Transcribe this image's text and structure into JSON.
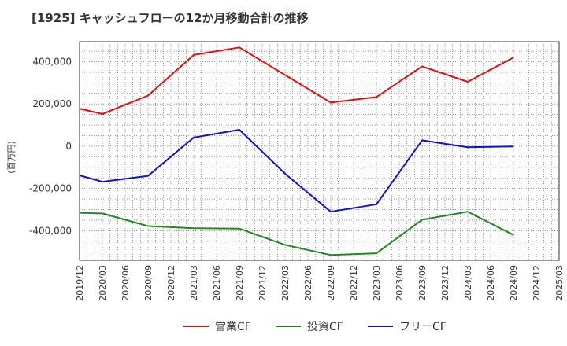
{
  "title": "[1925]  キャッシュフローの12か月移動合計の推移",
  "chart_data": {
    "type": "line",
    "title": "[1925]  キャッシュフローの12か月移動合計の推移",
    "ylabel": "(百万円)",
    "xlabel": "",
    "ylim": [
      -540000,
      495000
    ],
    "yticks": [
      400000,
      200000,
      0,
      -200000,
      -400000
    ],
    "ytick_labels": [
      "400,000",
      "200,000",
      "0",
      "-200,000",
      "-400,000"
    ],
    "x_categories": [
      "2019/12",
      "2020/03",
      "2020/06",
      "2020/09",
      "2020/12",
      "2021/03",
      "2021/06",
      "2021/09",
      "2021/12",
      "2022/03",
      "2022/06",
      "2022/09",
      "2022/12",
      "2023/03",
      "2023/06",
      "2023/09",
      "2023/12",
      "2024/03",
      "2024/06",
      "2024/09",
      "2024/12",
      "2025/03"
    ],
    "grid": true,
    "legend_position": "bottom",
    "series": [
      {
        "name": "営業CF",
        "color": "#dd1111",
        "points": [
          {
            "x": "2019/12",
            "y": 178000
          },
          {
            "x": "2020/03",
            "y": 153000
          },
          {
            "x": "2020/09",
            "y": 240000
          },
          {
            "x": "2021/03",
            "y": 432000
          },
          {
            "x": "2021/09",
            "y": 468000
          },
          {
            "x": "2022/09",
            "y": 207000
          },
          {
            "x": "2023/03",
            "y": 233000
          },
          {
            "x": "2023/09",
            "y": 378000
          },
          {
            "x": "2024/03",
            "y": 305000
          },
          {
            "x": "2024/09",
            "y": 420000
          }
        ]
      },
      {
        "name": "投資CF",
        "color": "#228822",
        "points": [
          {
            "x": "2019/12",
            "y": -315000
          },
          {
            "x": "2020/03",
            "y": -318000
          },
          {
            "x": "2020/09",
            "y": -378000
          },
          {
            "x": "2021/03",
            "y": -388000
          },
          {
            "x": "2021/09",
            "y": -390000
          },
          {
            "x": "2022/03",
            "y": -467000
          },
          {
            "x": "2022/09",
            "y": -515000
          },
          {
            "x": "2023/03",
            "y": -507000
          },
          {
            "x": "2023/09",
            "y": -348000
          },
          {
            "x": "2024/03",
            "y": -310000
          },
          {
            "x": "2024/09",
            "y": -420000
          }
        ]
      },
      {
        "name": "フリーCF",
        "color": "#1111cc",
        "points": [
          {
            "x": "2019/12",
            "y": -138000
          },
          {
            "x": "2020/03",
            "y": -168000
          },
          {
            "x": "2020/09",
            "y": -140000
          },
          {
            "x": "2021/03",
            "y": 41000
          },
          {
            "x": "2021/09",
            "y": 78000
          },
          {
            "x": "2022/03",
            "y": -130000
          },
          {
            "x": "2022/09",
            "y": -310000
          },
          {
            "x": "2023/03",
            "y": -275000
          },
          {
            "x": "2023/09",
            "y": 28000
          },
          {
            "x": "2024/03",
            "y": -5000
          },
          {
            "x": "2024/09",
            "y": -1000
          }
        ]
      }
    ]
  }
}
